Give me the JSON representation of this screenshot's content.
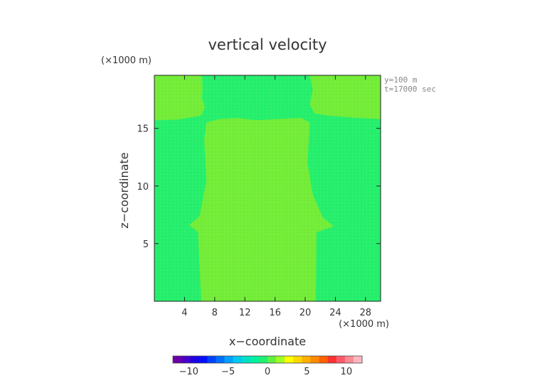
{
  "chart_data": {
    "type": "heatmap",
    "title": "vertical velocity",
    "xlabel": "x−coordinate",
    "ylabel": "z−coordinate",
    "x_unit": "(×1000 m)",
    "y_unit": "(×1000 m)",
    "annotations": [
      "y=100 m",
      "t=17000 sec"
    ],
    "xlim": [
      0,
      30
    ],
    "ylim": [
      0,
      19.6
    ],
    "x_ticks": [
      4,
      8,
      12,
      16,
      20,
      24,
      28
    ],
    "y_ticks": [
      5,
      10,
      15
    ],
    "colorbar": {
      "range": [
        -12,
        12
      ],
      "ticks": [
        -10,
        -5,
        0,
        5,
        10
      ],
      "colors": [
        "#6a00a8",
        "#4b00c8",
        "#1f00e0",
        "#0010ff",
        "#0040ff",
        "#0070ff",
        "#00a0ff",
        "#00c8f0",
        "#00e0c8",
        "#00f0a0",
        "#20f070",
        "#60f040",
        "#a0ff20",
        "#ffff00",
        "#ffd800",
        "#ffb000",
        "#ff8800",
        "#ff6000",
        "#ff3030",
        "#ff5a6a",
        "#ff8a94",
        "#ffb8c0"
      ]
    },
    "regions": [
      {
        "name": "background",
        "value": 0.3,
        "color": "#23ee6a"
      },
      {
        "name": "central updraft column",
        "value": 1.0,
        "color": "#71ec35",
        "boundary": [
          [
            6.2,
            0
          ],
          [
            5.8,
            6
          ],
          [
            4.6,
            6.6
          ],
          [
            6.0,
            7.4
          ],
          [
            6.9,
            10.5
          ],
          [
            6.6,
            14
          ],
          [
            6.9,
            15.5
          ],
          [
            8.5,
            15.8
          ],
          [
            11,
            15.9
          ],
          [
            13.5,
            15.7
          ],
          [
            16,
            15.8
          ],
          [
            19.5,
            15.9
          ],
          [
            20.6,
            15.5
          ],
          [
            20.3,
            12
          ],
          [
            21.0,
            9.3
          ],
          [
            22.3,
            7.3
          ],
          [
            23.8,
            6.5
          ],
          [
            21.5,
            6.0
          ],
          [
            21.4,
            0
          ]
        ]
      },
      {
        "name": "upper-left updraft",
        "value": 1.0,
        "color": "#71ec35",
        "boundary": [
          [
            0,
            19.6
          ],
          [
            6.3,
            19.6
          ],
          [
            6.4,
            18.5
          ],
          [
            6.3,
            17.6
          ],
          [
            6.7,
            16.8
          ],
          [
            6.2,
            16.1
          ],
          [
            3,
            15.75
          ],
          [
            0,
            15.7
          ]
        ]
      },
      {
        "name": "upper-right updraft",
        "value": 1.0,
        "color": "#71ec35",
        "boundary": [
          [
            20.6,
            19.6
          ],
          [
            30,
            19.6
          ],
          [
            30,
            15.8
          ],
          [
            27,
            15.9
          ],
          [
            23,
            16.1
          ],
          [
            21.2,
            16.3
          ],
          [
            20.6,
            17.1
          ],
          [
            21.0,
            18.4
          ]
        ]
      }
    ]
  }
}
